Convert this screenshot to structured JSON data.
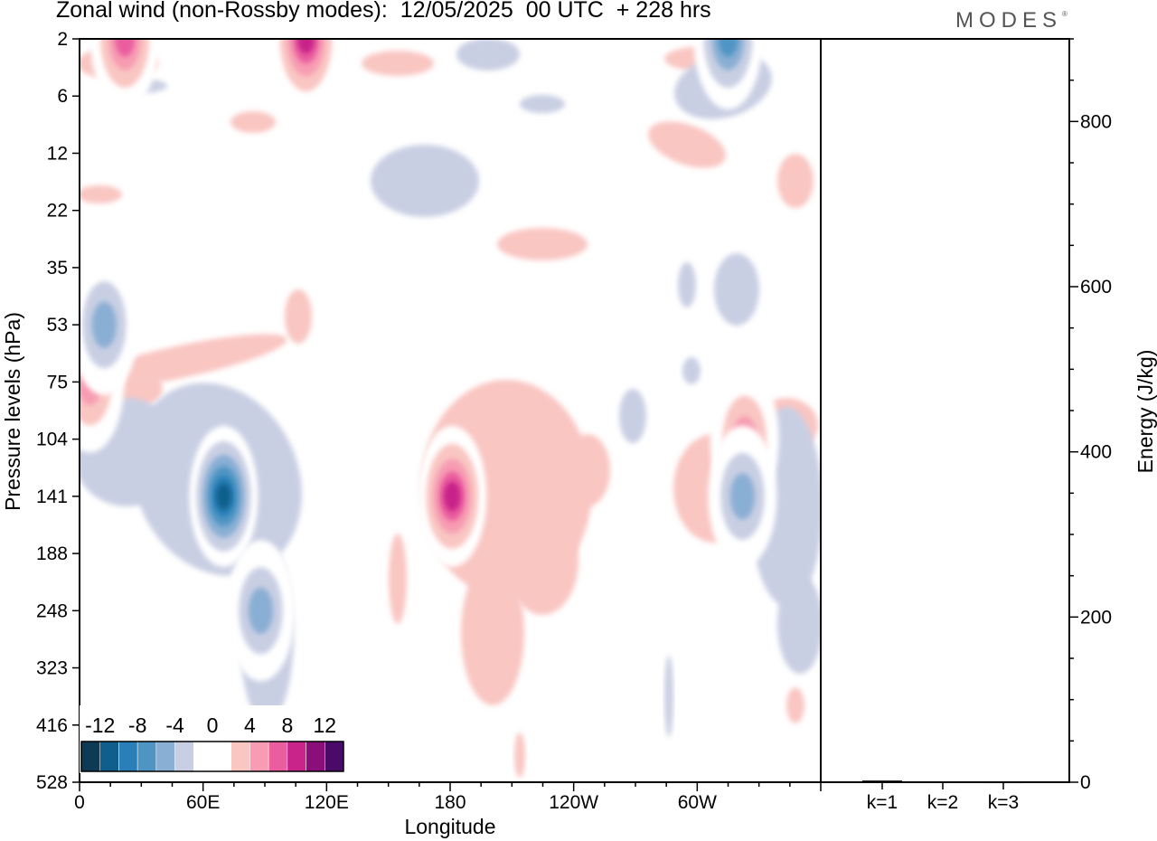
{
  "header": {
    "title": "Zonal wind (non-Rossby modes):  12/05/2025  00 UTC  + 228 hrs",
    "logo": "MODES",
    "logo_mark": "®"
  },
  "chart_data": [
    {
      "type": "heatmap",
      "variable": "Zonal wind (non-Rossby modes)",
      "date": "12/05/2025",
      "time": "00 UTC",
      "forecast_lead": "+ 228 hrs",
      "xlabel": "Longitude",
      "ylabel": "Pressure levels (hPa)",
      "x_ticks": [
        "0",
        "60E",
        "120E",
        "180",
        "120W",
        "60W"
      ],
      "x_tick_values": [
        0,
        60,
        120,
        180,
        240,
        300
      ],
      "xlim": [
        0,
        360
      ],
      "y_ticks": [
        "2",
        "6",
        "12",
        "22",
        "35",
        "53",
        "75",
        "104",
        "141",
        "188",
        "248",
        "323",
        "416",
        "528"
      ],
      "y_scale": "model levels (reversed, top = 2 hPa)",
      "colorbar": {
        "labels": [
          "-12",
          "-8",
          "-4",
          "0",
          "4",
          "8",
          "12"
        ],
        "levels": [
          -14,
          -12,
          -10,
          -8,
          -6,
          -4,
          -2,
          0,
          2,
          4,
          6,
          8,
          10,
          12,
          14
        ],
        "colors": [
          "#0d3a55",
          "#0f5e8c",
          "#2a7fb8",
          "#4f95c4",
          "#8aafd4",
          "#c9cfe3",
          "#ffffff",
          "#ffffff",
          "#f9c6c2",
          "#f79cb2",
          "#ea5d9f",
          "#c82489",
          "#8b0f7a",
          "#4a0a68"
        ],
        "placement": "bottom-left"
      },
      "features": [
        {
          "lon": 70,
          "level": "141",
          "value": -12
        },
        {
          "lon": 88,
          "level": "248",
          "value": -6
        },
        {
          "lon": 181,
          "level": "141",
          "value": 10
        },
        {
          "lon": 323,
          "level": "104",
          "value": 6
        },
        {
          "lon": 5,
          "level": "75",
          "value": 5
        },
        {
          "lon": 322,
          "level": "141",
          "value": -6
        },
        {
          "lon": 315,
          "level": "2",
          "value": -8
        },
        {
          "lon": 22,
          "level": "2",
          "value": 8
        },
        {
          "lon": 110,
          "level": "2",
          "value": 10
        },
        {
          "lon": 12,
          "level": "53",
          "value": -6
        }
      ]
    },
    {
      "type": "bar",
      "categories": [
        "k=1",
        "k=2",
        "k=3"
      ],
      "values": [
        2,
        1,
        0.5
      ],
      "ylabel": "Energy (J/kg)",
      "ylim": [
        0,
        900
      ],
      "y_ticks": [
        0,
        200,
        400,
        600,
        800
      ],
      "y_minor_step": 50
    }
  ]
}
